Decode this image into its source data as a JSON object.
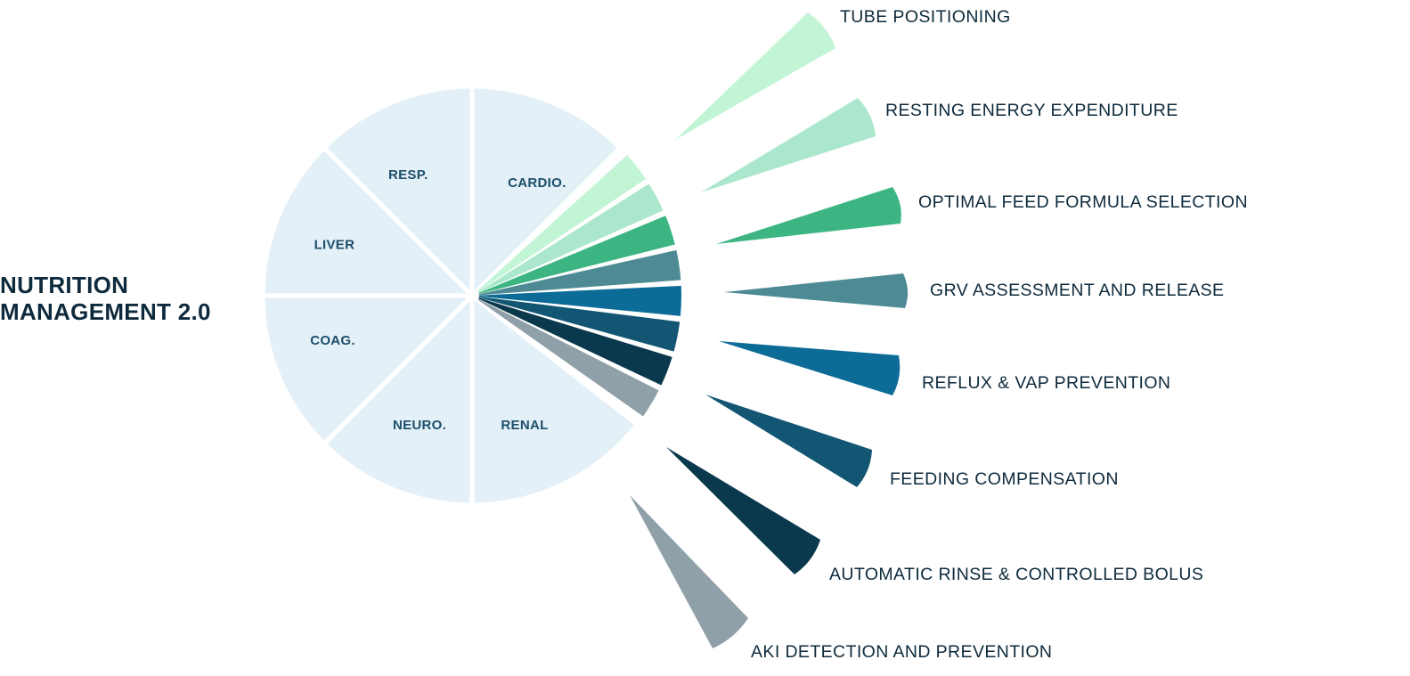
{
  "title": {
    "line1": "NUTRITION",
    "line2": "MANAGEMENT 2.0"
  },
  "organ_segments": [
    {
      "label": "CARDIO."
    },
    {
      "label": "RESP."
    },
    {
      "label": "LIVER"
    },
    {
      "label": "COAG."
    },
    {
      "label": "NEURO."
    },
    {
      "label": "RENAL"
    }
  ],
  "features": [
    {
      "label": "TUBE POSITIONING",
      "color": "#c2f4d6"
    },
    {
      "label": "RESTING ENERGY EXPENDITURE",
      "color": "#abe7cc"
    },
    {
      "label": "OPTIMAL FEED FORMULA SELECTION",
      "color": "#3db583"
    },
    {
      "label": "GRV ASSESSMENT AND RELEASE",
      "color": "#4d8a94"
    },
    {
      "label": "REFLUX & VAP PREVENTION",
      "color": "#0d6c97"
    },
    {
      "label": "FEEDING COMPENSATION",
      "color": "#125674"
    },
    {
      "label": "AUTOMATIC RINSE & CONTROLLED BOLUS",
      "color": "#0a384d"
    },
    {
      "label": "AKI DETECTION AND PREVENTION",
      "color": "#8fa0a9"
    }
  ],
  "colors": {
    "segment_fill": "#e3f0f8",
    "title_text": "#0e2a3c",
    "segment_text": "#1d4e6b"
  }
}
